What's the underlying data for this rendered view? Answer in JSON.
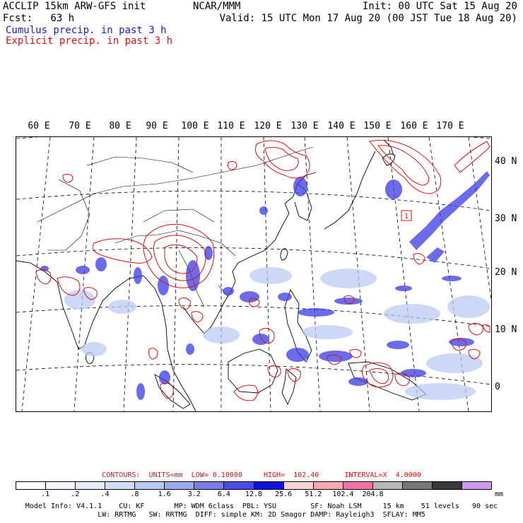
{
  "header": {
    "line1_left": "ACCLIP 15km ARW-GFS init",
    "line1_center": "NCAR/MMM",
    "line1_right": "Init: 00 UTC Sat 15 Aug 20",
    "line2_left": "Fcst:   63 h",
    "line2_right": "Valid: 15 UTC Mon 17 Aug 20 (00 JST Tue 18 Aug 20)",
    "legend_cumulus": "Cumulus precip. in past 3 h",
    "legend_explicit": "Explicit precip. in past 3 h"
  },
  "map": {
    "lon_labels": [
      "60 E",
      "70 E",
      "80 E",
      "90 E",
      "100 E",
      "110 E",
      "120 E",
      "130 E",
      "140 E",
      "150 E",
      "160 E",
      "170 E"
    ],
    "lat_labels": [
      "40 N",
      "30 N",
      "20 N",
      "10 N",
      "0"
    ],
    "station_marker": "1",
    "colors": {
      "coast": "#000000",
      "gridline": "#000000",
      "cumulus": "#3a3ae6",
      "cumulus_light": "#b8c8f4",
      "explicit": "#e01010"
    }
  },
  "contours": {
    "label": "CONTOURS:  UNITS=mm  LOW= 0.10000     HIGH=  102.40      INTERVAL=X  4.0000"
  },
  "colorbar": {
    "colors": [
      "#ffffff",
      "#f4f4fc",
      "#e6eafa",
      "#d2dcf6",
      "#b8c8f2",
      "#9aa8ee",
      "#7a7cea",
      "#4a4ae6",
      "#1010e0",
      "#f8d4d4",
      "#f4a8b0",
      "#f070a8",
      "#b8b8b8",
      "#787878",
      "#383838",
      "#cc99ee"
    ],
    "ticks": [
      ".1",
      ".2",
      ".4",
      ".8",
      "1.6",
      "3.2",
      "6.4",
      "12.8",
      "25.6",
      "51.2",
      "102.4",
      "204.8"
    ],
    "unit": "mm"
  },
  "model_info": {
    "line1": "Model Info: V4.1.1    CU: KF       MP: WDM 6class  PBL: YSU        SF: Noah LSM     15 km    51 levels   90 sec",
    "line2": "LW: RRTMG   SW: RRTMG  DIFF: simple KM: 2D Smagor DAMP: Rayleigh3  SFLAY: MM5"
  }
}
